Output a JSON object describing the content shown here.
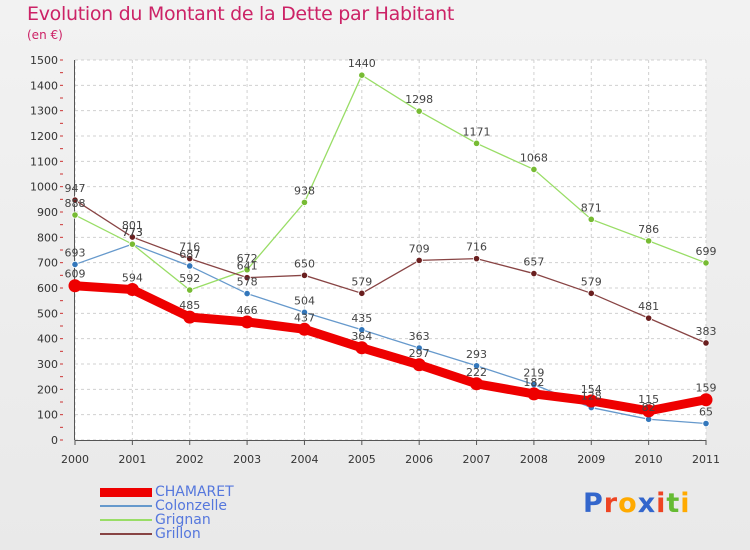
{
  "chart_data": {
    "type": "line",
    "title": "Evolution du Montant de la Dette par Habitant",
    "subtitle": "(en €)",
    "x": [
      "2000",
      "2001",
      "2002",
      "2003",
      "2004",
      "2005",
      "2006",
      "2007",
      "2008",
      "2009",
      "2010",
      "2011"
    ],
    "ylim": [
      0,
      1500
    ],
    "yticks": [
      "0",
      "100",
      "200",
      "300",
      "400",
      "500",
      "600",
      "700",
      "800",
      "900",
      "1000",
      "1100",
      "1200",
      "1300",
      "1400",
      "1500"
    ],
    "grid": true,
    "legend_position": "bottom-left",
    "series": [
      {
        "name": "CHAMARET",
        "color": "#ee0000",
        "emphasis": true,
        "values": [
          609,
          594,
          485,
          466,
          437,
          364,
          297,
          222,
          182,
          154,
          115,
          159
        ],
        "labels": [
          "609",
          "594",
          "485",
          "466",
          "437",
          "364",
          "297",
          "222",
          "182",
          "154",
          "115",
          "159"
        ]
      },
      {
        "name": "Colonzelle",
        "color": "#6699cc",
        "marker": "#3377bb",
        "values": [
          693,
          773,
          687,
          578,
          504,
          435,
          363,
          293,
          219,
          128,
          82,
          65
        ],
        "labels": [
          "693",
          "773",
          "687",
          "578",
          "504",
          "435",
          "363",
          "293",
          "219",
          "128",
          "82",
          "65"
        ]
      },
      {
        "name": "Grignan",
        "color": "#99dd66",
        "marker": "#77bb33",
        "values": [
          888,
          773,
          592,
          672,
          938,
          1440,
          1298,
          1171,
          1068,
          871,
          786,
          699
        ],
        "labels": [
          "888",
          "773",
          "592",
          "672",
          "938",
          "1440",
          "1298",
          "1171",
          "1068",
          "871",
          "786",
          "699"
        ]
      },
      {
        "name": "Grillon",
        "color": "#884444",
        "marker": "#6a1f1f",
        "values": [
          947,
          801,
          716,
          641,
          650,
          579,
          709,
          716,
          657,
          579,
          481,
          383
        ],
        "labels": [
          "947",
          "801",
          "716",
          "641",
          "650",
          "579",
          "709",
          "716",
          "657",
          "579",
          "481",
          "383"
        ]
      }
    ]
  },
  "branding": {
    "logo_text": "Proxiti",
    "logo_colors": [
      "#3366cc",
      "#ee4422",
      "#ffaa00",
      "#3366cc",
      "#ee4422",
      "#66bb33",
      "#ffaa00"
    ]
  }
}
